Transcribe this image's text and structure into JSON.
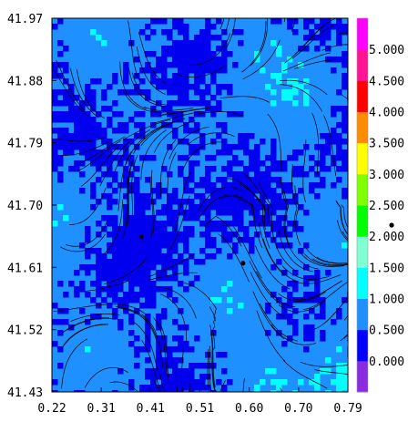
{
  "chart_data": {
    "type": "heatmap",
    "title": "",
    "xlabel": "",
    "ylabel": "",
    "xlim": [
      0.22,
      0.79
    ],
    "ylim": [
      41.43,
      41.97
    ],
    "x_ticks": [
      "0.22",
      "0.31",
      "0.41",
      "0.51",
      "0.60",
      "0.70",
      "0.79"
    ],
    "y_ticks": [
      "41.97",
      "41.88",
      "41.79",
      "41.70",
      "41.61",
      "41.52",
      "41.43"
    ],
    "colorbar": {
      "ticks": [
        "0.000",
        "0.500",
        "1.000",
        "1.500",
        "2.000",
        "2.500",
        "3.000",
        "3.500",
        "4.000",
        "4.500",
        "5.000"
      ],
      "range": [
        -0.5,
        5.5
      ],
      "colors": [
        "#8a2be2",
        "#0000ff",
        "#1e90ff",
        "#00ffff",
        "#7fffd4",
        "#00ff00",
        "#7fff00",
        "#ffff00",
        "#ff8c00",
        "#ff0000",
        "#ff1493",
        "#ff00ff"
      ]
    },
    "field_levels_shown": [
      "0.000",
      "0.500",
      "1.000",
      "1.500",
      "2.000"
    ],
    "streamlines": true,
    "markers": [
      {
        "x": 0.392,
        "y": 41.654
      },
      {
        "x": 0.588,
        "y": 41.616
      }
    ]
  }
}
